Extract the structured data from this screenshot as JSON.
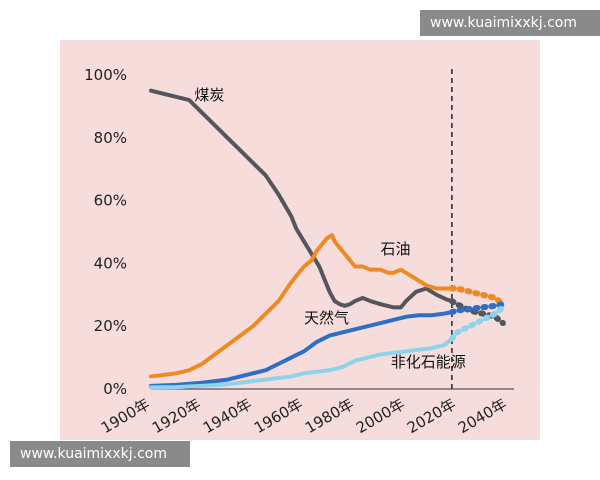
{
  "watermark_top": "www.kuaimixxkj.com",
  "watermark_bottom": "www.kuaimixxkj.com",
  "colors": {
    "background": "#f7dcdc",
    "coal": "#54565c",
    "oil": "#ee8a23",
    "gas": "#2e6fc4",
    "nonfossil": "#8fd3ea"
  },
  "chart_data": {
    "type": "line",
    "xlim": [
      1900,
      2040
    ],
    "ylim": [
      0,
      100
    ],
    "xticks": [
      1900,
      1920,
      1940,
      1960,
      1980,
      2000,
      2020,
      2040
    ],
    "xtick_labels": [
      "1900年",
      "1920年",
      "1940年",
      "1960年",
      "1980年",
      "2000年",
      "2020年",
      "2040年"
    ],
    "yticks": [
      0,
      20,
      40,
      60,
      80,
      100
    ],
    "ytick_labels": [
      "0%",
      "20%",
      "40%",
      "60%",
      "80%",
      "100%"
    ],
    "forecast_divider_x": 2018,
    "series": [
      {
        "name": "煤炭",
        "color": "#54565c",
        "x": [
          1900,
          1910,
          1915,
          1920,
          1925,
          1930,
          1935,
          1940,
          1945,
          1950,
          1955,
          1957,
          1960,
          1963,
          1966,
          1968,
          1970,
          1972,
          1974,
          1976,
          1978,
          1980,
          1983,
          1986,
          1990,
          1995,
          1998,
          2000,
          2004,
          2008,
          2012,
          2016,
          2018,
          2020,
          2025,
          2030,
          2035,
          2038
        ],
        "y": [
          95,
          93,
          92,
          88,
          84,
          80,
          76,
          72,
          68,
          62,
          55,
          51,
          47,
          43,
          39,
          35,
          31,
          28,
          27,
          26.5,
          27,
          28,
          29,
          28,
          27,
          26,
          26,
          28,
          31,
          32,
          30,
          28.5,
          28,
          27,
          25,
          24,
          23,
          21
        ]
      },
      {
        "name": "石油",
        "color": "#ee8a23",
        "x": [
          1900,
          1910,
          1915,
          1920,
          1925,
          1930,
          1935,
          1940,
          1945,
          1950,
          1955,
          1960,
          1963,
          1965,
          1967,
          1969,
          1971,
          1972,
          1975,
          1978,
          1980,
          1983,
          1986,
          1990,
          1993,
          1995,
          1998,
          2000,
          2004,
          2008,
          2012,
          2016,
          2018,
          2020,
          2025,
          2030,
          2035,
          2038
        ],
        "y": [
          4,
          5,
          6,
          8,
          11,
          14,
          17,
          20,
          24,
          28,
          34,
          39,
          41,
          44,
          46,
          48,
          49,
          47,
          44,
          41,
          39,
          39,
          38,
          38,
          37,
          37,
          38,
          37,
          35,
          33,
          32,
          32,
          32,
          32,
          31,
          30,
          29,
          27
        ]
      },
      {
        "name": "天然气",
        "color": "#2e6fc4",
        "x": [
          1900,
          1910,
          1920,
          1930,
          1940,
          1945,
          1950,
          1955,
          1960,
          1965,
          1970,
          1975,
          1980,
          1985,
          1990,
          1995,
          2000,
          2005,
          2010,
          2015,
          2018,
          2020,
          2025,
          2030,
          2035,
          2038
        ],
        "y": [
          1,
          1.3,
          2,
          3,
          5,
          6,
          8,
          10,
          12,
          15,
          17,
          18,
          19,
          20,
          21,
          22,
          23,
          23.5,
          23.5,
          24,
          24.5,
          25,
          25.5,
          26,
          26.5,
          27
        ]
      },
      {
        "name": "非化石能源",
        "color": "#8fd3ea",
        "x": [
          1900,
          1910,
          1920,
          1930,
          1940,
          1950,
          1955,
          1960,
          1965,
          1970,
          1975,
          1980,
          1985,
          1990,
          1995,
          2000,
          2005,
          2010,
          2015,
          2018,
          2020,
          2025,
          2030,
          2035,
          2038
        ],
        "y": [
          0.5,
          0.6,
          1,
          1.5,
          2.5,
          3.5,
          4,
          5,
          5.5,
          6,
          7,
          9,
          10,
          11,
          11.5,
          12,
          12.5,
          13,
          14,
          16,
          18,
          20,
          22,
          24,
          26
        ]
      }
    ],
    "labels": [
      {
        "text": "煤炭",
        "x": 1917,
        "y": 92
      },
      {
        "text": "石油",
        "x": 1990,
        "y": 43
      },
      {
        "text": "天然气",
        "x": 1960,
        "y": 21
      },
      {
        "text": "非化石能源",
        "x": 1994,
        "y": 7
      }
    ]
  }
}
